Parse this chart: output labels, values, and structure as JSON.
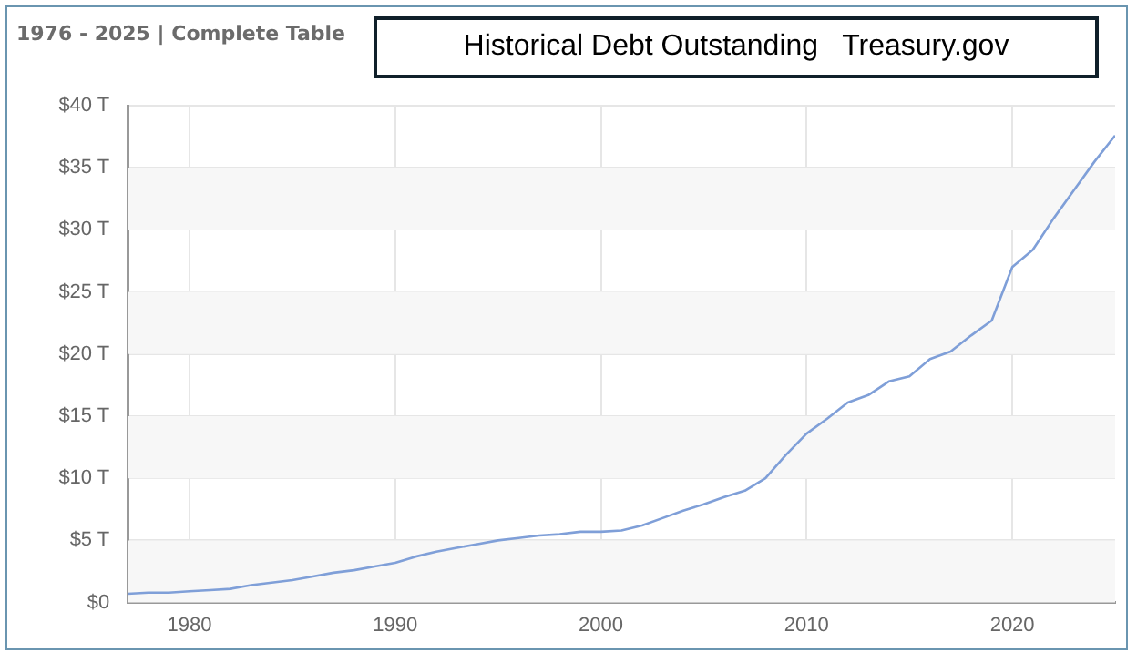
{
  "chart_data": {
    "type": "line",
    "title": "Historical Debt Outstanding   Treasury.gov",
    "subtitle": "1976 - 2025 | Complete Table",
    "x": [
      1977,
      1978,
      1979,
      1980,
      1981,
      1982,
      1983,
      1984,
      1985,
      1986,
      1987,
      1988,
      1989,
      1990,
      1991,
      1992,
      1993,
      1994,
      1995,
      1996,
      1997,
      1998,
      1999,
      2000,
      2001,
      2002,
      2003,
      2004,
      2005,
      2006,
      2007,
      2008,
      2009,
      2010,
      2011,
      2012,
      2013,
      2014,
      2015,
      2016,
      2017,
      2018,
      2019,
      2020,
      2021,
      2022,
      2023,
      2024,
      2025
    ],
    "series": [
      {
        "color": "#7f9fd8",
        "values": [
          0.7,
          0.8,
          0.8,
          0.9,
          1.0,
          1.1,
          1.4,
          1.6,
          1.8,
          2.1,
          2.4,
          2.6,
          2.9,
          3.2,
          3.7,
          4.1,
          4.4,
          4.7,
          5.0,
          5.2,
          5.4,
          5.5,
          5.7,
          5.7,
          5.8,
          6.2,
          6.8,
          7.4,
          7.9,
          8.5,
          9.0,
          10.0,
          11.9,
          13.6,
          14.8,
          16.1,
          16.7,
          17.8,
          18.2,
          19.6,
          20.2,
          21.5,
          22.7,
          27.0,
          28.4,
          30.9,
          33.2,
          35.5,
          37.6
        ]
      }
    ],
    "xlim": [
      1977,
      2025
    ],
    "xticks": [
      1980,
      1990,
      2000,
      2010,
      2020
    ],
    "ylim": [
      0,
      40
    ],
    "yticks": [
      {
        "value": 0,
        "label": "$0"
      },
      {
        "value": 5,
        "label": "$5 T"
      },
      {
        "value": 10,
        "label": "$10 T"
      },
      {
        "value": 15,
        "label": "$15 T"
      },
      {
        "value": 20,
        "label": "$20 T"
      },
      {
        "value": 25,
        "label": "$25 T"
      },
      {
        "value": 30,
        "label": "$30 T"
      },
      {
        "value": 35,
        "label": "$35 T"
      },
      {
        "value": 40,
        "label": "$40 T"
      }
    ],
    "bands": [
      {
        "axis": "y",
        "from": 0,
        "to": 5,
        "color": "#f7f7f7"
      },
      {
        "axis": "y",
        "from": 10,
        "to": 15,
        "color": "#f7f7f7"
      },
      {
        "axis": "y",
        "from": 20,
        "to": 25,
        "color": "#f7f7f7"
      },
      {
        "axis": "y",
        "from": 30,
        "to": 35,
        "color": "#f7f7f7"
      }
    ],
    "grid": true,
    "legend": false,
    "marker": "none",
    "line_style": "solid"
  }
}
